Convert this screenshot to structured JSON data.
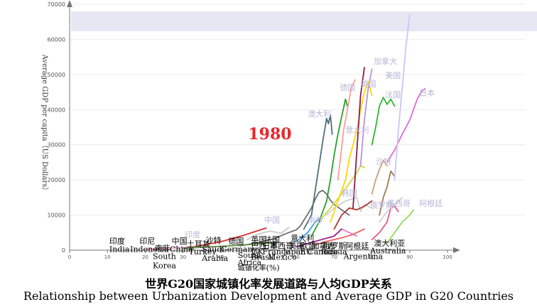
{
  "chart_data": {
    "type": "line",
    "title_cn": "世界G20国家城镇化率发展道路与人均GDP关系",
    "title_en": "Relationship between Urbanization Development and  Average GDP in G20 Countries",
    "ylabel": "Average GDP per capita（US Dollars）",
    "xlabel": "城镇化率 (%)",
    "year_label": "1980",
    "xlim": [
      0,
      100
    ],
    "ylim": [
      0,
      70000
    ],
    "x_ticks": [
      0,
      10,
      20,
      30,
      40,
      50,
      60,
      70,
      80,
      90,
      100
    ],
    "y_ticks": [
      0,
      10000,
      20000,
      30000,
      40000,
      50000,
      60000,
      70000
    ],
    "series": [
      {
        "color": "#e8c7cf",
        "points": [
          [
            28,
            600
          ],
          [
            31,
            900
          ],
          [
            34,
            1300
          ]
        ]
      },
      {
        "color": "#d92b2b",
        "points": [
          [
            34,
            1200
          ],
          [
            40,
            2400
          ],
          [
            46,
            4200
          ],
          [
            52,
            6300
          ]
        ]
      },
      {
        "color": "#c8c8c8",
        "points": [
          [
            47,
            3000
          ],
          [
            50,
            4600
          ],
          [
            53,
            5400
          ],
          [
            56,
            4800
          ],
          [
            58,
            6500
          ]
        ]
      },
      {
        "color": "#6d6d6d",
        "points": [
          [
            45,
            1200
          ],
          [
            50,
            2200
          ],
          [
            54,
            3200
          ],
          [
            57,
            4600
          ],
          [
            60,
            5800
          ],
          [
            61,
            6800
          ],
          [
            62,
            8500
          ],
          [
            64,
            12000
          ],
          [
            65,
            14500
          ],
          [
            66,
            16500
          ],
          [
            67,
            17000
          ],
          [
            68,
            16000
          ],
          [
            69,
            14200
          ],
          [
            70,
            13000
          ],
          [
            72,
            11500
          ],
          [
            74,
            10000
          ]
        ]
      },
      {
        "color": "#4d6f76",
        "points": [
          [
            62,
            6000
          ],
          [
            64,
            10000
          ],
          [
            65,
            17000
          ],
          [
            66,
            24000
          ],
          [
            67,
            31000
          ],
          [
            68,
            37500
          ],
          [
            68.5,
            36000
          ],
          [
            69,
            38500
          ],
          [
            69.5,
            33000
          ]
        ]
      },
      {
        "color": "#cfd0d4",
        "points": [
          [
            68,
            10000
          ],
          [
            70,
            12000
          ],
          [
            73,
            14000
          ],
          [
            76,
            15000
          ],
          [
            77,
            11000
          ],
          [
            78,
            13000
          ],
          [
            80,
            12000
          ]
        ]
      },
      {
        "color": "#d4d34a",
        "points": [
          [
            66,
            8000
          ],
          [
            69,
            12000
          ],
          [
            72,
            16000
          ],
          [
            74,
            19000
          ],
          [
            76,
            22000
          ],
          [
            77,
            24000
          ],
          [
            78,
            23500
          ]
        ]
      },
      {
        "color": "#2aa12a",
        "points": [
          [
            64,
            4000
          ],
          [
            66,
            8000
          ],
          [
            68,
            14000
          ],
          [
            69,
            20000
          ],
          [
            70,
            27000
          ],
          [
            71,
            33000
          ],
          [
            72,
            38000
          ],
          [
            73,
            43000
          ],
          [
            73.5,
            41000
          ]
        ]
      },
      {
        "color": "#ffd700",
        "points": [
          [
            69,
            8000
          ],
          [
            71,
            14000
          ],
          [
            73,
            20000
          ],
          [
            74,
            26000
          ],
          [
            75,
            30000
          ],
          [
            76,
            34000
          ],
          [
            77,
            40000
          ],
          [
            78,
            45000
          ],
          [
            79,
            48000
          ],
          [
            80,
            44000
          ]
        ]
      },
      {
        "color": "#ff9b9b",
        "points": [
          [
            71,
            20000
          ],
          [
            72.5,
            34000
          ],
          [
            73.5,
            40000
          ],
          [
            74.5,
            46000
          ],
          [
            75.5,
            48500
          ]
        ]
      },
      {
        "color": "#b03a2e",
        "points": [
          [
            70,
            6000
          ],
          [
            72,
            10000
          ],
          [
            74,
            12000
          ],
          [
            76,
            11500
          ],
          [
            78,
            12500
          ],
          [
            80,
            14000
          ]
        ]
      },
      {
        "color": "#8b1a4a",
        "points": [
          [
            75,
            12000
          ],
          [
            76,
            28000
          ],
          [
            77,
            44000
          ],
          [
            78,
            52000
          ]
        ]
      },
      {
        "color": "#b596d6",
        "points": [
          [
            77,
            24000
          ],
          [
            78,
            37000
          ],
          [
            79,
            46000
          ],
          [
            80,
            51500
          ]
        ]
      },
      {
        "color": "#2eb82e",
        "points": [
          [
            80,
            30000
          ],
          [
            81,
            35000
          ],
          [
            82,
            41000
          ],
          [
            83,
            43500
          ],
          [
            84,
            41500
          ],
          [
            85,
            43000
          ],
          [
            86,
            41000
          ]
        ]
      },
      {
        "color": "#c7a07a",
        "points": [
          [
            80,
            16000
          ],
          [
            81,
            20000
          ],
          [
            82,
            23000
          ],
          [
            83,
            25500
          ],
          [
            84,
            24000
          ]
        ]
      },
      {
        "color": "#9a7d54",
        "points": [
          [
            82,
            10000
          ],
          [
            83,
            15000
          ],
          [
            84,
            18000
          ],
          [
            85,
            22500
          ],
          [
            86,
            21000
          ]
        ]
      },
      {
        "color": "#e06cd6",
        "points": [
          [
            84,
            25000
          ],
          [
            86,
            28500
          ],
          [
            88,
            33000
          ],
          [
            90,
            37000
          ],
          [
            91,
            40000
          ],
          [
            92,
            43000
          ],
          [
            93,
            45000
          ],
          [
            94,
            46000
          ]
        ]
      },
      {
        "color": "#c8c6ff",
        "points": [
          [
            86,
            20000
          ],
          [
            87,
            34000
          ],
          [
            88,
            46000
          ],
          [
            89,
            58000
          ],
          [
            90,
            67000
          ]
        ]
      },
      {
        "color": "#e65a8c",
        "points": [
          [
            80,
            3000
          ],
          [
            82,
            5000
          ],
          [
            84,
            8000
          ],
          [
            85,
            12000
          ],
          [
            86,
            12500
          ],
          [
            87,
            11000
          ]
        ]
      },
      {
        "color": "#d0d0d0",
        "points": [
          [
            82,
            8000
          ],
          [
            84,
            11000
          ],
          [
            86,
            13000
          ],
          [
            88,
            15000
          ]
        ]
      },
      {
        "color": "#8edc5a",
        "points": [
          [
            84,
            2000
          ],
          [
            86,
            5000
          ],
          [
            88,
            8000
          ],
          [
            90,
            10000
          ],
          [
            91,
            11500
          ]
        ]
      },
      {
        "color": "#e87ad0",
        "points": [
          [
            70,
            4000
          ],
          [
            72,
            6000
          ],
          [
            74,
            5000
          ],
          [
            76,
            4000
          ]
        ]
      },
      {
        "color": "#9e2a8e",
        "points": [
          [
            60,
            1000
          ],
          [
            65,
            2500
          ],
          [
            70,
            4000
          ],
          [
            72,
            6000
          ]
        ]
      },
      {
        "color": "#3399ff",
        "points": [
          [
            60,
            2500
          ],
          [
            63,
            5000
          ],
          [
            65,
            8000
          ],
          [
            66,
            9000
          ]
        ]
      },
      {
        "color": "#f06060",
        "points": [
          [
            65,
            1500
          ],
          [
            68,
            2500
          ],
          [
            72,
            3500
          ],
          [
            75,
            4500
          ],
          [
            78,
            6000
          ]
        ]
      },
      {
        "color": "#f2a6c0",
        "points": [
          [
            20,
            300
          ],
          [
            25,
            500
          ],
          [
            30,
            700
          ],
          [
            35,
            900
          ],
          [
            40,
            1100
          ]
        ]
      },
      {
        "color": "#5b8c3a",
        "points": [
          [
            30,
            500
          ],
          [
            35,
            800
          ],
          [
            40,
            1100
          ],
          [
            45,
            1400
          ],
          [
            50,
            1800
          ],
          [
            55,
            2200
          ]
        ]
      }
    ],
    "labels": [
      {
        "text": "加拿大",
        "x": 80.5,
        "y": 53000,
        "color": "#b9b6d6",
        "size": 11
      },
      {
        "text": "美国",
        "x": 83.5,
        "y": 49000,
        "color": "#b9b6d6",
        "size": 11
      },
      {
        "text": "英国",
        "x": 77,
        "y": 46500,
        "color": "#b9b6d6",
        "size": 11
      },
      {
        "text": "德国",
        "x": 71.5,
        "y": 45500,
        "color": "#b9b6d6",
        "size": 11
      },
      {
        "text": "法国",
        "x": 83.5,
        "y": 43500,
        "color": "#b9b6d6",
        "size": 11
      },
      {
        "text": "日本",
        "x": 92.5,
        "y": 44000,
        "color": "#b9b6d6",
        "size": 11
      },
      {
        "text": "澳大利",
        "x": 63,
        "y": 38000,
        "color": "#b9b6d6",
        "size": 11
      },
      {
        "text": "意大利",
        "x": 73,
        "y": 33500,
        "color": "#b9b6d6",
        "size": 11
      },
      {
        "text": "沙特",
        "x": 81,
        "y": 24500,
        "color": "#b9b6d6",
        "size": 11
      },
      {
        "text": "韩国",
        "x": 72,
        "y": 15500,
        "color": "#b9b6d6",
        "size": 11
      },
      {
        "text": "俄罗斯",
        "x": 79.5,
        "y": 12000,
        "color": "#b9b6d6",
        "size": 11
      },
      {
        "text": "阿根廷",
        "x": 92.5,
        "y": 12500,
        "color": "#b9b6d6",
        "size": 11
      },
      {
        "text": "墨西哥",
        "x": 84,
        "y": 12500,
        "color": "#b9b6d6",
        "size": 11
      },
      {
        "text": "南非",
        "x": 63,
        "y": 7800,
        "color": "#b9b6d6",
        "size": 11
      },
      {
        "text": "中国",
        "x": 51.5,
        "y": 7800,
        "color": "#b9b6d6",
        "size": 11
      },
      {
        "text": "印度",
        "x": 30.5,
        "y": 3600,
        "color": "#b9b6d6",
        "size": 11
      },
      {
        "text": "印度",
        "x": 10.5,
        "y": 1800,
        "color": "#000000",
        "size": 11
      },
      {
        "text": "India",
        "x": 10.5,
        "y": -500,
        "color": "#000000",
        "size": 11
      },
      {
        "text": "印尼",
        "x": 18.5,
        "y": 1800,
        "color": "#000000",
        "size": 11
      },
      {
        "text": "Indonesia",
        "x": 16,
        "y": -500,
        "color": "#000000",
        "size": 11
      },
      {
        "text": "中国",
        "x": 27,
        "y": 1800,
        "color": "#000000",
        "size": 11
      },
      {
        "text": "China",
        "x": 26.5,
        "y": -500,
        "color": "#000000",
        "size": 11
      },
      {
        "text": "南非",
        "x": 22.5,
        "y": -200,
        "color": "#000000",
        "size": 11
      },
      {
        "text": "South",
        "x": 22,
        "y": -2500,
        "color": "#000000",
        "size": 11
      },
      {
        "text": "Korea",
        "x": 22,
        "y": -5200,
        "color": "#000000",
        "size": 11
      },
      {
        "text": "土耳其",
        "x": 31,
        "y": 1000,
        "color": "#000000",
        "size": 11
      },
      {
        "text": "Turkey",
        "x": 31.5,
        "y": -1200,
        "color": "#000000",
        "size": 11
      },
      {
        "text": "沙特",
        "x": 36,
        "y": 2000,
        "color": "#000000",
        "size": 11
      },
      {
        "text": "Saudi",
        "x": 35,
        "y": -500,
        "color": "#000000",
        "size": 11
      },
      {
        "text": "Arabia",
        "x": 35,
        "y": -3000,
        "color": "#000000",
        "size": 11
      },
      {
        "text": "德国",
        "x": 42,
        "y": 1800,
        "color": "#000000",
        "size": 11
      },
      {
        "text": "Germany",
        "x": 40,
        "y": -500,
        "color": "#000000",
        "size": 11
      },
      {
        "text": "South",
        "x": 44.5,
        "y": -2200,
        "color": "#000000",
        "size": 11
      },
      {
        "text": "Africa",
        "x": 44.5,
        "y": -4200,
        "color": "#000000",
        "size": 11
      },
      {
        "text": "英国",
        "x": 48,
        "y": 2200,
        "color": "#000000",
        "size": 11
      },
      {
        "text": "法国",
        "x": 51.5,
        "y": 2200,
        "color": "#000000",
        "size": 11
      },
      {
        "text": "巴西",
        "x": 48,
        "y": 500,
        "color": "#000000",
        "size": 11
      },
      {
        "text": "日本",
        "x": 51,
        "y": 500,
        "color": "#000000",
        "size": 11
      },
      {
        "text": "墨西哥",
        "x": 53,
        "y": 500,
        "color": "#000000",
        "size": 11
      },
      {
        "text": "UK",
        "x": 48,
        "y": -1200,
        "color": "#000000",
        "size": 11
      },
      {
        "text": "Brasil",
        "x": 48,
        "y": -2700,
        "color": "#000000",
        "size": 11
      },
      {
        "text": "France",
        "x": 51,
        "y": -1200,
        "color": "#000000",
        "size": 11
      },
      {
        "text": "Mexico",
        "x": 52.5,
        "y": -2700,
        "color": "#000000",
        "size": 11
      },
      {
        "text": "城镇化率",
        "x": 44.5,
        "y": -5800,
        "color": "#000000",
        "size": 10
      },
      {
        "text": "(%)",
        "x": 52,
        "y": -5800,
        "color": "#000000",
        "size": 11
      },
      {
        "text": "意大利",
        "x": 58.5,
        "y": 2600,
        "color": "#000000",
        "size": 11
      },
      {
        "text": "美国",
        "x": 58,
        "y": 500,
        "color": "#000000",
        "size": 11
      },
      {
        "text": "欧盟",
        "x": 61,
        "y": 500,
        "color": "#000000",
        "size": 11
      },
      {
        "text": "加拿大",
        "x": 64,
        "y": 500,
        "color": "#000000",
        "size": 11
      },
      {
        "text": "俄罗斯",
        "x": 67,
        "y": 500,
        "color": "#000000",
        "size": 11
      },
      {
        "text": "Japan",
        "x": 56.5,
        "y": -1200,
        "color": "#000000",
        "size": 11
      },
      {
        "text": "EU",
        "x": 61,
        "y": -1200,
        "color": "#000000",
        "size": 11
      },
      {
        "text": "Canada",
        "x": 63,
        "y": -1200,
        "color": "#000000",
        "size": 11
      },
      {
        "text": "Russia",
        "x": 66.5,
        "y": -1200,
        "color": "#000000",
        "size": 11
      },
      {
        "text": "阿根廷",
        "x": 73,
        "y": 400,
        "color": "#000000",
        "size": 11
      },
      {
        "text": "Argentina",
        "x": 72.5,
        "y": -2500,
        "color": "#000000",
        "size": 11
      },
      {
        "text": "澳大利亚",
        "x": 80.5,
        "y": 1200,
        "color": "#000000",
        "size": 11
      },
      {
        "text": "Australia",
        "x": 79.5,
        "y": -900,
        "color": "#000000",
        "size": 11
      }
    ]
  }
}
